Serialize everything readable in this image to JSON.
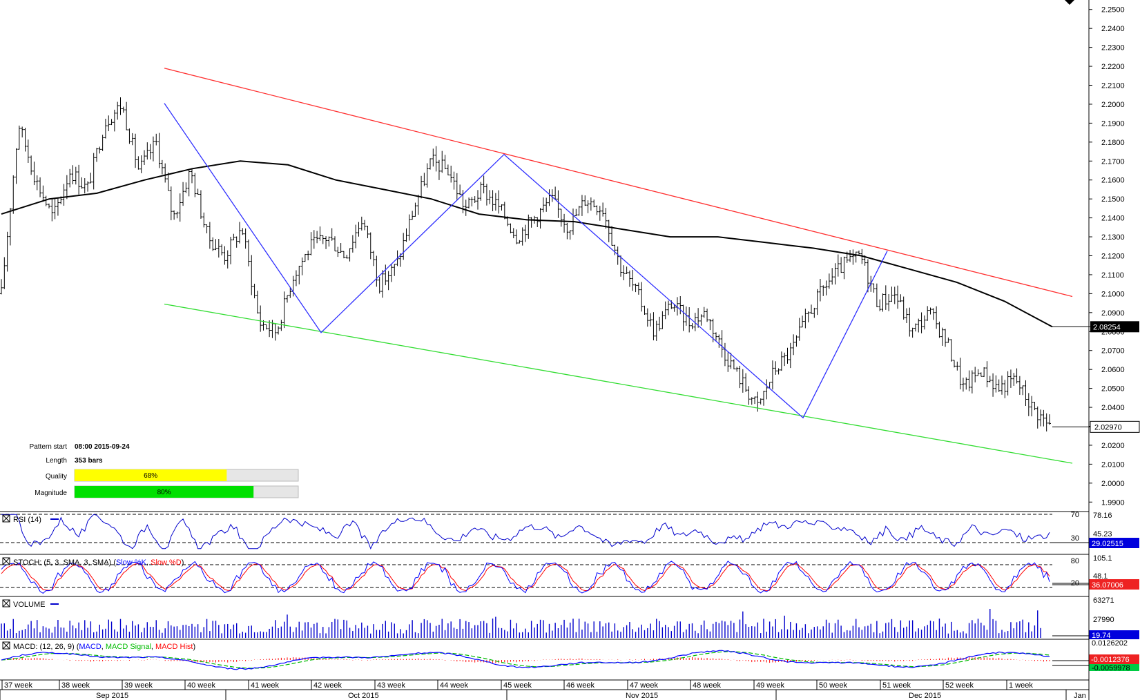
{
  "chart_data": {
    "type": "bar",
    "subtype": "ohlc",
    "price_axis": {
      "range": [
        1.985,
        2.255
      ],
      "ticks": [
        "2.2500",
        "2.2400",
        "2.2300",
        "2.2200",
        "2.2100",
        "2.2000",
        "2.1900",
        "2.1800",
        "2.1700",
        "2.1600",
        "2.1500",
        "2.1400",
        "2.1300",
        "2.1200",
        "2.1100",
        "2.1000",
        "2.0900",
        "2.0800",
        "2.0700",
        "2.0600",
        "2.0500",
        "2.0400",
        "2.0300",
        "2.0200",
        "2.0100",
        "2.0000",
        "1.9900"
      ],
      "current_price_label": "2.02970",
      "ma_value_label": "2.08254",
      "current_price": 2.0297,
      "ma_value": 2.08254
    },
    "week_labels": [
      "37 week",
      "38 week",
      "39 week",
      "40 week",
      "41 week",
      "42 week",
      "43 week",
      "44 week",
      "45 week",
      "46 week",
      "47 week",
      "48 week",
      "49 week",
      "50 week",
      "51 week",
      "52 week",
      "1 week"
    ],
    "month_labels": [
      "Sep 2015",
      "Oct 2015",
      "Nov 2015",
      "Dec 2015",
      "Jan"
    ],
    "bar_count": 353,
    "price_anchors": [
      2.1,
      2.19,
      2.16,
      2.14,
      2.165,
      2.155,
      2.19,
      2.2,
      2.165,
      2.18,
      2.14,
      2.165,
      2.13,
      2.12,
      2.135,
      2.085,
      2.08,
      2.11,
      2.125,
      2.13,
      2.12,
      2.14,
      2.105,
      2.115,
      2.145,
      2.17,
      2.165,
      2.145,
      2.155,
      2.145,
      2.13,
      2.14,
      2.15,
      2.135,
      2.15,
      2.145,
      2.115,
      2.1,
      2.08,
      2.095,
      2.085,
      2.09,
      2.07,
      2.055,
      2.04,
      2.06,
      2.07,
      2.09,
      2.105,
      2.115,
      2.12,
      2.095,
      2.1,
      2.08,
      2.09,
      2.075,
      2.05,
      2.06,
      2.05,
      2.055,
      2.04,
      2.03
    ],
    "moving_average": {
      "anchors": [
        2.142,
        2.15,
        2.153,
        2.16,
        2.166,
        2.17,
        2.168,
        2.16,
        2.155,
        2.15,
        2.142,
        2.139,
        2.138,
        2.134,
        2.13,
        2.13,
        2.127,
        2.124,
        2.12,
        2.113,
        2.106,
        2.096,
        2.0825
      ],
      "color": "#000000"
    },
    "channel_upper": {
      "start": [
        2.219,
        "09-24"
      ],
      "end": [
        2.0985,
        "end"
      ],
      "color": "#ff3030"
    },
    "channel_lower": {
      "start": [
        2.0945,
        "09-24"
      ],
      "end": [
        2.0105,
        "end"
      ],
      "color": "#33dd33"
    },
    "zigzag": {
      "points": [
        2.2005,
        2.0795,
        2.1735,
        2.0345,
        2.1225
      ],
      "color": "#2f2fff"
    },
    "pattern_info": {
      "pattern_start_label": "Pattern start",
      "pattern_start_value": "08:00 2015-09-24",
      "length_label": "Length",
      "length_value": "353 bars",
      "quality_label": "Quality",
      "quality_value": "68%",
      "quality": 0.68,
      "quality_color": "#ffff00",
      "magnitude_label": "Magnitude",
      "magnitude_value": "80%",
      "magnitude": 0.8,
      "magnitude_color": "#00e000"
    },
    "indicators": {
      "rsi": {
        "title": "RSI (14)",
        "levels": [
          "70",
          "30"
        ],
        "axis_labels": [
          "78.16",
          "45.23"
        ],
        "current": "29.02515",
        "current_color": "#0000dd",
        "line_color": "#0000cc"
      },
      "stoch": {
        "title_prefix": "STOCH: (5, 3, SMA, 3, SMA)",
        "k_label": "Slow %K",
        "d_label": "Slow %D",
        "k_color": "#0000ff",
        "d_color": "#ff0000",
        "levels": [
          "80",
          "20"
        ],
        "axis_labels": [
          "105.1",
          "48.1"
        ],
        "current": "36.07006",
        "current_color": "#ee2222"
      },
      "volume": {
        "title": "VOLUME",
        "axis_labels": [
          "63271",
          "27990"
        ],
        "current": "19.74",
        "current_color": "#0000dd",
        "bar_color": "#0000cc"
      },
      "macd": {
        "title_prefix": "MACD: (12, 26, 9)",
        "macd_label": "MACD",
        "signal_label": "MACD Signal",
        "hist_label": "MACD Hist",
        "macd_color": "#0000ff",
        "signal_color": "#00bb00",
        "hist_color": "#ff0000",
        "axis_labels": [
          "0.0126202"
        ],
        "current": "-0.0012376",
        "current_color": "#ee2222",
        "signal_current": "-0.0059978",
        "signal_current_color": "#00cc44"
      }
    }
  }
}
